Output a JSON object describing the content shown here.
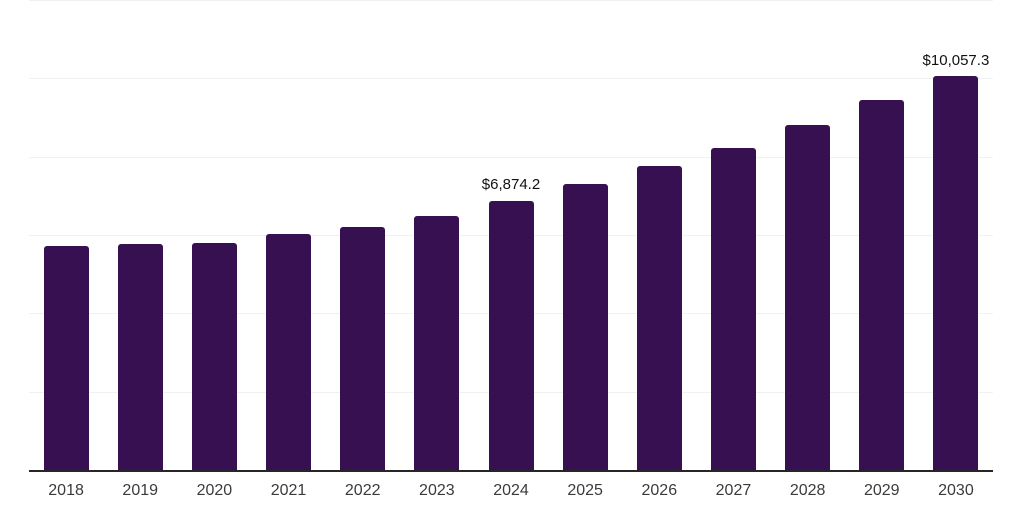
{
  "chart": {
    "background_color": "#ffffff",
    "bar_color": "#361050",
    "axis_line_color": "#262626",
    "gridline_color": "#f1f1f1",
    "x_label_color": "#3b3b3b",
    "value_label_color": "#111111"
  },
  "chart_data": {
    "type": "bar",
    "title": "",
    "xlabel": "",
    "ylabel": "",
    "categories": [
      "2018",
      "2019",
      "2020",
      "2021",
      "2022",
      "2023",
      "2024",
      "2025",
      "2026",
      "2027",
      "2028",
      "2029",
      "2030"
    ],
    "values": [
      5712,
      5781,
      5799,
      6029,
      6198,
      6497,
      6874.2,
      7290,
      7758,
      8228,
      8799,
      9439,
      10057.3
    ],
    "data_labels": [
      {
        "index": 6,
        "text": "$6,874.2"
      },
      {
        "index": 12,
        "text": "$10,057.3"
      }
    ],
    "ylim": [
      0,
      12000
    ],
    "gridline_step": 2000,
    "grid": true,
    "y_tick_labels_visible": false,
    "legend_position": "none"
  }
}
